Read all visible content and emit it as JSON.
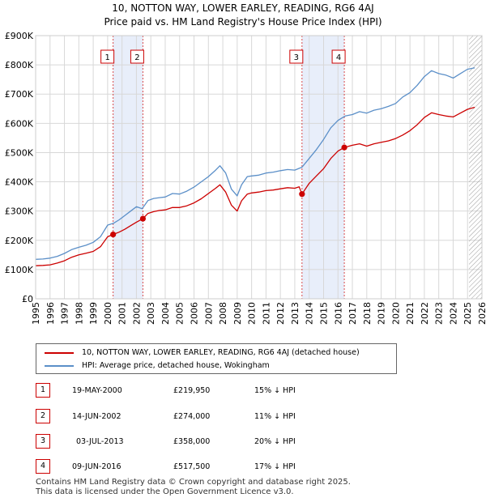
{
  "title_line1": "10, NOTTON WAY, LOWER EARLEY, READING, RG6 4AJ",
  "title_line2": "Price paid vs. HM Land Registry's House Price Index (HPI)",
  "legend": {
    "red_label": "10, NOTTON WAY, LOWER EARLEY, READING, RG6 4AJ (detached house)",
    "blue_label": "HPI: Average price, detached house, Wokingham"
  },
  "transactions": [
    {
      "id": "1",
      "date": "19-MAY-2000",
      "price": "£219,950",
      "hpi": "15% ↓ HPI"
    },
    {
      "id": "2",
      "date": "14-JUN-2002",
      "price": "£274,000",
      "hpi": "11% ↓ HPI"
    },
    {
      "id": "3",
      "date": "03-JUL-2013",
      "price": "£358,000",
      "hpi": "20% ↓ HPI"
    },
    {
      "id": "4",
      "date": "09-JUN-2016",
      "price": "£517,500",
      "hpi": "17% ↓ HPI"
    }
  ],
  "footer_line1": "Contains HM Land Registry data © Crown copyright and database right 2025.",
  "footer_line2": "This data is licensed under the Open Government Licence v3.0.",
  "colors": {
    "red": "#cc0000",
    "blue": "#5b8fc8",
    "band": "#e8eefa",
    "grid": "#d8d8d8",
    "vline": "#cc0000"
  },
  "chart_data": {
    "type": "line",
    "title": "10, NOTTON WAY, LOWER EARLEY, READING, RG6 4AJ — Price paid vs. HM Land Registry's House Price Index (HPI)",
    "xlabel": "",
    "ylabel": "",
    "xlim": [
      1995,
      2026
    ],
    "ylim": [
      0,
      900000
    ],
    "x_ticks": [
      1995,
      1996,
      1997,
      1998,
      1999,
      2000,
      2001,
      2002,
      2003,
      2004,
      2005,
      2006,
      2007,
      2008,
      2009,
      2010,
      2011,
      2012,
      2013,
      2014,
      2015,
      2016,
      2017,
      2018,
      2019,
      2020,
      2021,
      2022,
      2023,
      2024,
      2025,
      2026
    ],
    "x_tick_labels": [
      "1995",
      "1996",
      "1997",
      "1998",
      "1999",
      "2000",
      "2001",
      "2002",
      "2003",
      "2004",
      "2005",
      "2006",
      "2007",
      "2008",
      "2009",
      "2010",
      "2011",
      "2012",
      "2013",
      "2014",
      "2015",
      "2016",
      "2017",
      "2018",
      "2019",
      "2020",
      "2021",
      "2022",
      "2023",
      "2024",
      "2025",
      "2026"
    ],
    "y_ticks": [
      0,
      100000,
      200000,
      300000,
      400000,
      500000,
      600000,
      700000,
      800000,
      900000
    ],
    "y_tick_labels": [
      "£0",
      "£100K",
      "£200K",
      "£300K",
      "£400K",
      "£500K",
      "£600K",
      "£700K",
      "£800K",
      "£900K"
    ],
    "shaded_bands": [
      [
        2000.38,
        2002.45
      ],
      [
        2013.5,
        2016.44
      ]
    ],
    "future_hatch_start": 2025.1,
    "series": [
      {
        "name": "HPI: Average price, detached house, Wokingham",
        "color": "#5b8fc8",
        "x": [
          1995.0,
          1995.5,
          1996.0,
          1996.5,
          1997.0,
          1997.5,
          1998.0,
          1998.5,
          1999.0,
          1999.5,
          2000.0,
          2000.4,
          2000.8,
          2001.2,
          2001.6,
          2002.0,
          2002.4,
          2002.8,
          2003.2,
          2003.6,
          2004.0,
          2004.5,
          2005.0,
          2005.5,
          2006.0,
          2006.5,
          2007.0,
          2007.5,
          2007.8,
          2008.2,
          2008.6,
          2009.0,
          2009.3,
          2009.7,
          2010.0,
          2010.5,
          2011.0,
          2011.5,
          2012.0,
          2012.5,
          2013.0,
          2013.5,
          2014.0,
          2014.5,
          2015.0,
          2015.5,
          2016.0,
          2016.5,
          2017.0,
          2017.5,
          2018.0,
          2018.5,
          2019.0,
          2019.5,
          2020.0,
          2020.5,
          2021.0,
          2021.5,
          2022.0,
          2022.5,
          2023.0,
          2023.5,
          2024.0,
          2024.5,
          2025.0,
          2025.5
        ],
        "values": [
          135000,
          136000,
          139000,
          145000,
          155000,
          168000,
          176000,
          183000,
          193000,
          212000,
          252000,
          258000,
          270000,
          285000,
          300000,
          315000,
          308000,
          336000,
          343000,
          346000,
          348000,
          360000,
          358000,
          368000,
          382000,
          400000,
          418000,
          440000,
          455000,
          430000,
          375000,
          352000,
          390000,
          418000,
          420000,
          423000,
          430000,
          433000,
          438000,
          442000,
          440000,
          450000,
          480000,
          510000,
          545000,
          585000,
          610000,
          625000,
          630000,
          640000,
          635000,
          645000,
          650000,
          658000,
          668000,
          690000,
          705000,
          730000,
          760000,
          780000,
          770000,
          765000,
          755000,
          770000,
          785000,
          790000
        ]
      },
      {
        "name": "10, NOTTON WAY, LOWER EARLEY, READING, RG6 4AJ (detached house)",
        "color": "#cc0000",
        "x": [
          1995.0,
          1995.5,
          1996.0,
          1996.5,
          1997.0,
          1997.5,
          1998.0,
          1998.5,
          1999.0,
          1999.5,
          2000.0,
          2000.38,
          2000.8,
          2001.2,
          2001.6,
          2002.0,
          2002.45,
          2002.8,
          2003.2,
          2003.6,
          2004.0,
          2004.5,
          2005.0,
          2005.5,
          2006.0,
          2006.5,
          2007.0,
          2007.5,
          2007.8,
          2008.2,
          2008.6,
          2009.0,
          2009.3,
          2009.7,
          2010.0,
          2010.5,
          2011.0,
          2011.5,
          2012.0,
          2012.5,
          2013.0,
          2013.3,
          2013.5,
          2014.0,
          2014.5,
          2015.0,
          2015.5,
          2016.0,
          2016.44,
          2017.0,
          2017.5,
          2018.0,
          2018.5,
          2019.0,
          2019.5,
          2020.0,
          2020.5,
          2021.0,
          2021.5,
          2022.0,
          2022.5,
          2023.0,
          2023.5,
          2024.0,
          2024.5,
          2025.0,
          2025.5
        ],
        "values": [
          113000,
          114000,
          116000,
          122000,
          130000,
          142000,
          150000,
          156000,
          162000,
          178000,
          212000,
          219950,
          228000,
          238000,
          250000,
          262000,
          274000,
          292000,
          298000,
          302000,
          304000,
          312000,
          312000,
          318000,
          328000,
          342000,
          360000,
          378000,
          390000,
          365000,
          320000,
          300000,
          335000,
          358000,
          362000,
          365000,
          370000,
          372000,
          376000,
          380000,
          378000,
          383000,
          358000,
          395000,
          420000,
          445000,
          480000,
          505000,
          517500,
          525000,
          530000,
          522000,
          530000,
          535000,
          540000,
          548000,
          560000,
          575000,
          595000,
          620000,
          636000,
          630000,
          625000,
          622000,
          635000,
          648000,
          655000
        ]
      }
    ],
    "sale_points": [
      {
        "label": "1",
        "x": 2000.38,
        "value": 219950
      },
      {
        "label": "2",
        "x": 2002.45,
        "value": 274000
      },
      {
        "label": "3",
        "x": 2013.5,
        "value": 358000
      },
      {
        "label": "4",
        "x": 2016.44,
        "value": 517500
      }
    ]
  }
}
